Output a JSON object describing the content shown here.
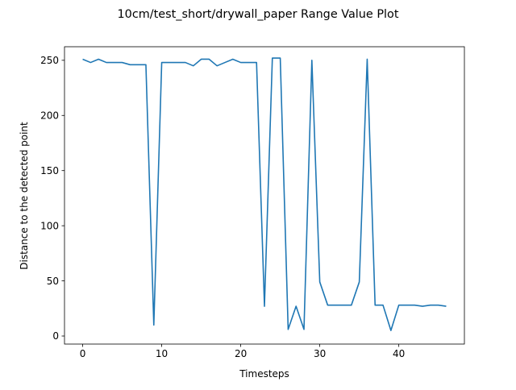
{
  "chart_data": {
    "type": "line",
    "title": "10cm/test_short/drywall_paper Range Value Plot",
    "xlabel": "Timesteps",
    "ylabel": "Distance to the detected point",
    "xlim": [
      -2.3,
      48.3
    ],
    "ylim": [
      -7.3,
      262.3
    ],
    "xticks": [
      0,
      10,
      20,
      30,
      40
    ],
    "yticks": [
      0,
      50,
      100,
      150,
      200,
      250
    ],
    "grid": false,
    "legend": "none",
    "line_color": "#1f77b4",
    "series": [
      {
        "x": [
          0,
          1,
          2,
          3,
          4,
          5,
          6,
          7,
          8,
          9,
          10,
          11,
          12,
          13,
          14,
          15,
          16,
          17,
          18,
          19,
          20,
          21,
          22,
          23,
          24,
          25,
          26,
          27,
          28,
          29,
          30,
          31,
          32,
          33,
          34,
          35,
          36,
          37,
          38,
          39,
          40,
          41,
          42,
          43,
          44,
          45,
          46
        ],
        "values": [
          251,
          248,
          251,
          248,
          248,
          248,
          246,
          246,
          246,
          10,
          248,
          248,
          248,
          248,
          245,
          251,
          251,
          245,
          248,
          251,
          248,
          248,
          248,
          27,
          252,
          252,
          6,
          27,
          6,
          250,
          49,
          28,
          28,
          28,
          28,
          49,
          251,
          28,
          28,
          5,
          28,
          28,
          28,
          27,
          28,
          28,
          27
        ]
      }
    ]
  }
}
